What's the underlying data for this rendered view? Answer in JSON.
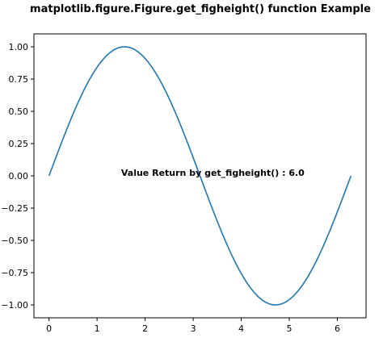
{
  "chart_data": {
    "type": "line",
    "title": "matplotlib.figure.Figure.get_figheight() function Example",
    "xlabel": "",
    "ylabel": "",
    "xlim": [
      -0.314,
      6.597
    ],
    "ylim": [
      -1.1,
      1.1
    ],
    "grid": false,
    "xticks": [
      0,
      1,
      2,
      3,
      4,
      5,
      6
    ],
    "yticks": [
      -1.0,
      -0.75,
      -0.5,
      -0.25,
      0.0,
      0.25,
      0.5,
      0.75,
      1.0
    ],
    "xtick_labels": [
      "0",
      "1",
      "2",
      "3",
      "4",
      "5",
      "6"
    ],
    "ytick_labels": [
      "−1.00",
      "−0.75",
      "−0.50",
      "−0.25",
      "0.00",
      "0.25",
      "0.50",
      "0.75",
      "1.00"
    ],
    "series": [
      {
        "color": "#1f77b4",
        "x": [
          0,
          0.2,
          0.4,
          0.6,
          0.8,
          1.0,
          1.2,
          1.4,
          1.571,
          1.8,
          2.0,
          2.2,
          2.4,
          2.6,
          2.8,
          3.0,
          3.142,
          3.4,
          3.6,
          3.8,
          4.0,
          4.2,
          4.4,
          4.6,
          4.712,
          4.9,
          5.1,
          5.3,
          5.5,
          5.7,
          5.9,
          6.1,
          6.283
        ],
        "y": [
          0,
          0.199,
          0.389,
          0.565,
          0.717,
          0.841,
          0.932,
          0.985,
          1.0,
          0.974,
          0.909,
          0.808,
          0.675,
          0.516,
          0.335,
          0.141,
          0.0,
          -0.256,
          -0.443,
          -0.612,
          -0.757,
          -0.872,
          -0.952,
          -0.994,
          -1.0,
          -0.982,
          -0.926,
          -0.832,
          -0.706,
          -0.551,
          -0.374,
          -0.182,
          0.0
        ]
      }
    ],
    "annotation": {
      "text": "Value Return by get_figheight() : 6.0",
      "x": 1.5,
      "y": 0.0
    }
  }
}
